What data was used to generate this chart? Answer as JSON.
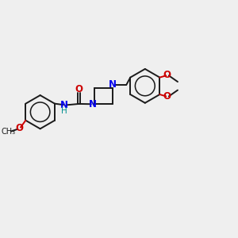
{
  "bg_color": "#efefef",
  "bond_color": "#1a1a1a",
  "bond_width": 1.4,
  "N_color": "#0000ee",
  "O_color": "#cc0000",
  "H_color": "#009090",
  "font_size": 8.5,
  "fig_size": [
    3.0,
    3.0
  ],
  "dpi": 100,
  "xlim": [
    0,
    10
  ],
  "ylim": [
    0,
    10
  ]
}
